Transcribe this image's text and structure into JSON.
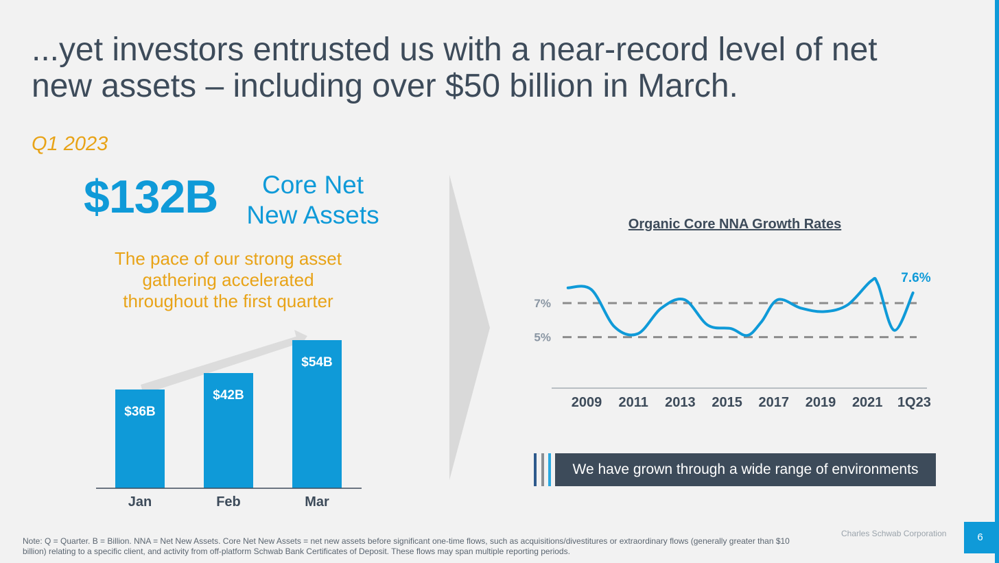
{
  "title": {
    "line1": "...yet investors entrusted us with a near-record level of net",
    "line2": "new assets – including over $50 billion in March."
  },
  "period": "Q1 2023",
  "headline": {
    "value": "$132B",
    "label_line1": "Core Net",
    "label_line2": "New Assets"
  },
  "pace_text": {
    "line1": "The pace of our strong asset",
    "line2": "gathering accelerated",
    "line3": "throughout the first quarter"
  },
  "callout": "We have grown through a wide range of environments",
  "footnote": {
    "line1": "Note: Q = Quarter. B = Billion. NNA = Net New Assets. Core Net New Assets = net new assets before significant one-time flows, such as acquisitions/divestitures or extraordinary flows (generally greater than $10",
    "line2": "billion) relating to a specific client, and activity from off-platform Schwab Bank Certificates of Deposit. These flows may span multiple reporting periods."
  },
  "company": "Charles Schwab Corporation",
  "page_number": "6",
  "colors": {
    "accent_blue": "#0f9ad8",
    "accent_gold": "#e8a317",
    "slate": "#3d4b5a",
    "reference_gray": "#8c8c8c"
  },
  "chart_data": [
    {
      "type": "bar",
      "title": "",
      "categories": [
        "Jan",
        "Feb",
        "Mar"
      ],
      "values": [
        36,
        42,
        54
      ],
      "data_labels": [
        "$36B",
        "$42B",
        "$54B"
      ],
      "unit": "$B",
      "ylim": [
        0,
        60
      ],
      "xlabel": "",
      "ylabel": ""
    },
    {
      "type": "line",
      "title": "Organic Core NNA Growth Rates",
      "x_tick_labels": [
        "2009",
        "2011",
        "2013",
        "2015",
        "2017",
        "2019",
        "2021",
        "1Q23"
      ],
      "x": [
        2008.0,
        2009.0,
        2010.0,
        2011.0,
        2012.0,
        2013.0,
        2014.0,
        2015.0,
        2015.7,
        2016.3,
        2017.0,
        2018.0,
        2019.0,
        2020.0,
        2021.0,
        2021.3,
        2022.0,
        2022.8
      ],
      "y": [
        7.9,
        7.8,
        5.6,
        5.2,
        6.7,
        7.2,
        5.7,
        5.5,
        5.1,
        5.9,
        7.2,
        6.7,
        6.5,
        6.9,
        8.3,
        8.1,
        5.4,
        7.6
      ],
      "xlim": [
        2007.3,
        2023.4
      ],
      "ylim": [
        2.0,
        9.5
      ],
      "reference_lines": [
        {
          "value": 7,
          "label": "7%"
        },
        {
          "value": 5,
          "label": "5%"
        }
      ],
      "end_label": "7.6%",
      "ylabel": "",
      "xlabel": ""
    }
  ]
}
